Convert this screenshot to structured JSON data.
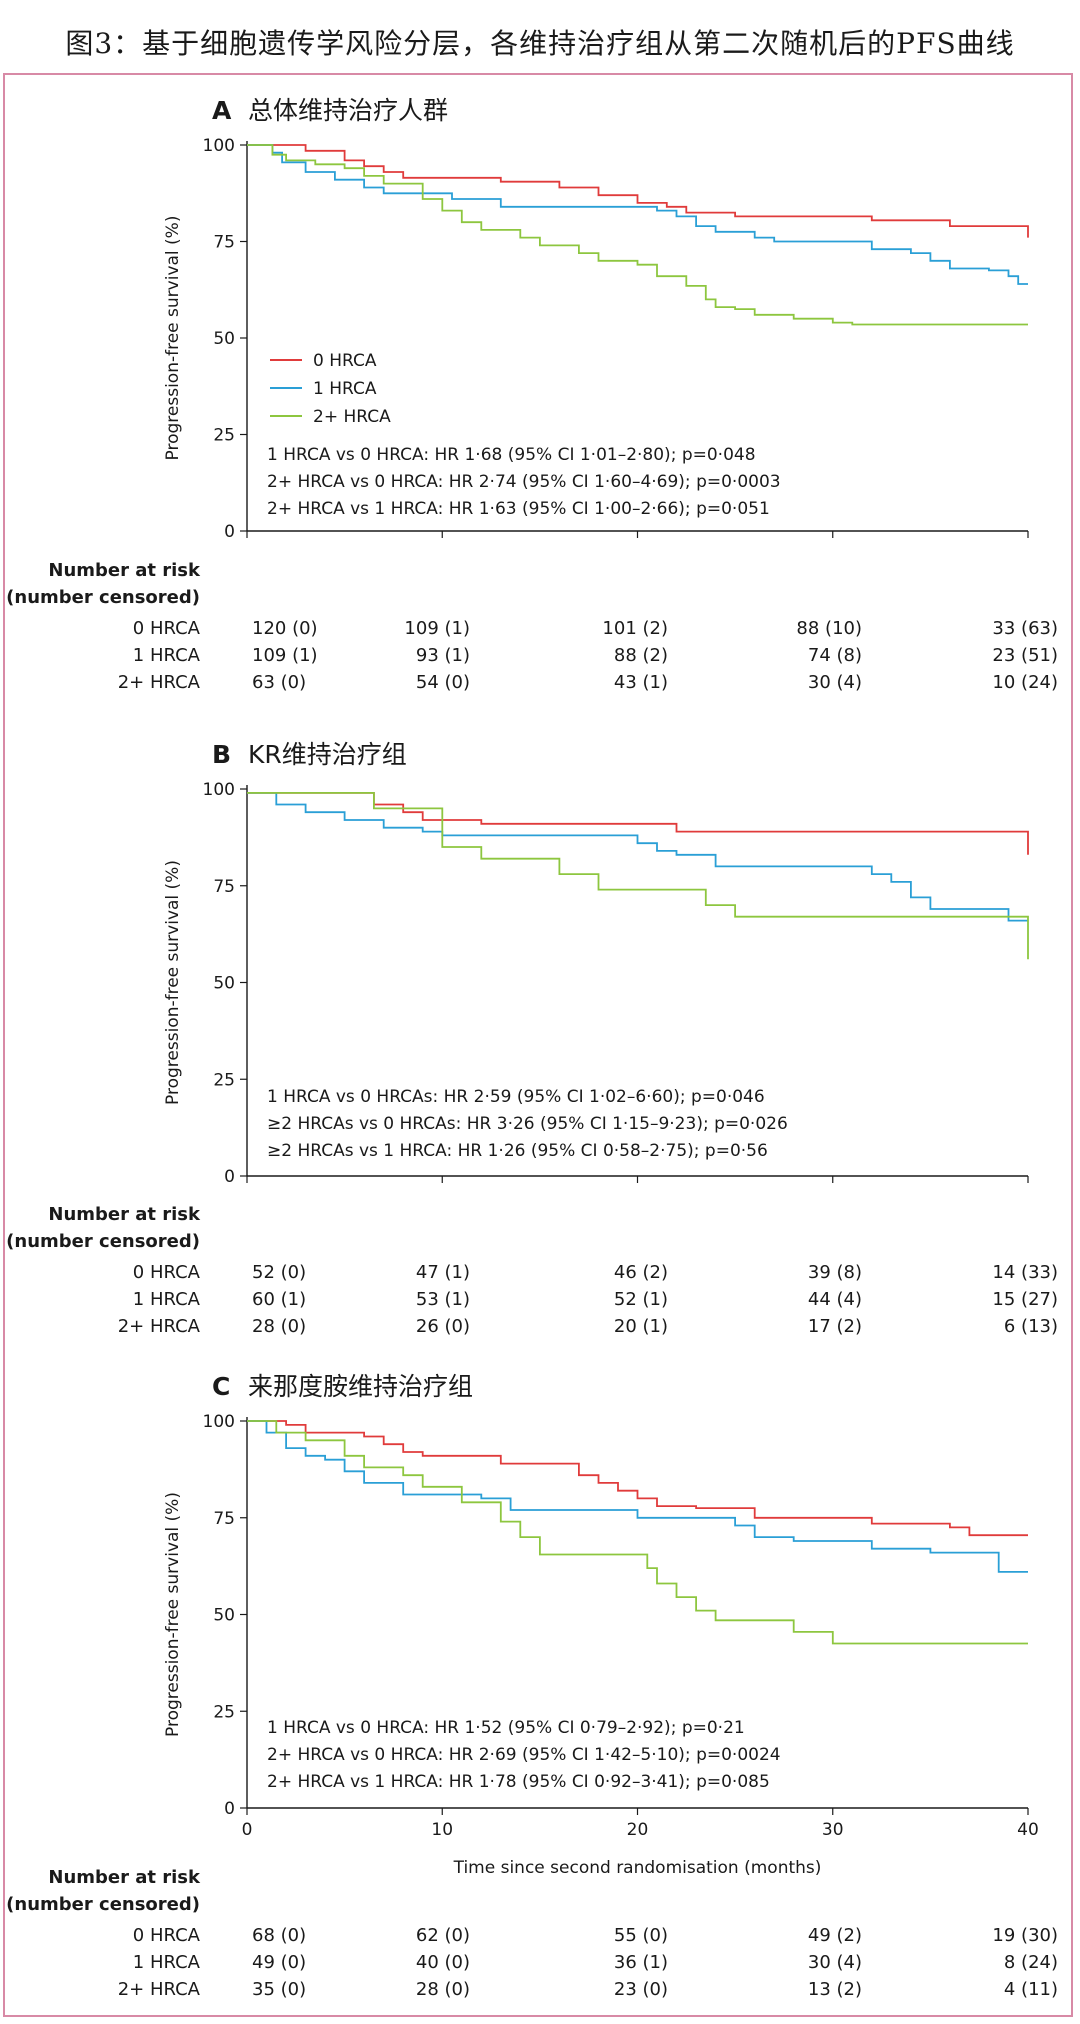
{
  "header": {
    "title": "图3：基于细胞遗传学风险分层，各维持治疗组从第二次随机后的PFS曲线"
  },
  "colors": {
    "hrca0": "#e03b3b",
    "hrca1": "#2a9fd6",
    "hrca2": "#8dc63f",
    "border": "#d88aa6"
  },
  "chart_data": [
    {
      "type": "line",
      "panel_letter": "A",
      "title": "总体维持治疗人群",
      "xlabel": "",
      "ylabel": "Progression-free survival (%)",
      "xlim": [
        0,
        40
      ],
      "ylim": [
        0,
        100
      ],
      "yticks": [
        "0",
        "25",
        "50",
        "75",
        "100"
      ],
      "xticks": [],
      "legend": {
        "position": "left",
        "entries": [
          "0 HRCA",
          "1 HRCA",
          "2+ HRCA"
        ]
      },
      "series": [
        {
          "name": "0 HRCA",
          "color": "#e03b3b",
          "points": [
            [
              0,
              100
            ],
            [
              2,
              100
            ],
            [
              3,
              98.5
            ],
            [
              5,
              96
            ],
            [
              6,
              94.5
            ],
            [
              7,
              93
            ],
            [
              8,
              91.5
            ],
            [
              13,
              90.5
            ],
            [
              16,
              89
            ],
            [
              18,
              87
            ],
            [
              20,
              85
            ],
            [
              21.5,
              84
            ],
            [
              22.5,
              82.5
            ],
            [
              25,
              81.5
            ],
            [
              27,
              81.5
            ],
            [
              32,
              80.5
            ],
            [
              36,
              79
            ],
            [
              40,
              79
            ],
            [
              40,
              76
            ]
          ]
        },
        {
          "name": "1 HRCA",
          "color": "#2a9fd6",
          "points": [
            [
              0,
              100
            ],
            [
              1.3,
              98
            ],
            [
              1.8,
              95.5
            ],
            [
              3,
              93
            ],
            [
              4.5,
              91
            ],
            [
              6,
              89
            ],
            [
              7,
              87.5
            ],
            [
              9,
              87.5
            ],
            [
              10.5,
              86
            ],
            [
              13,
              84
            ],
            [
              16,
              84
            ],
            [
              19,
              84
            ],
            [
              21,
              83
            ],
            [
              22,
              81.5
            ],
            [
              23,
              79
            ],
            [
              24,
              77.5
            ],
            [
              26,
              76
            ],
            [
              27,
              75
            ],
            [
              32,
              73
            ],
            [
              34,
              72
            ],
            [
              35,
              70
            ],
            [
              36,
              68
            ],
            [
              38,
              67.5
            ],
            [
              39,
              66
            ],
            [
              39.5,
              64
            ],
            [
              40,
              64
            ]
          ]
        },
        {
          "name": "2+ HRCA",
          "color": "#8dc63f",
          "points": [
            [
              0,
              100
            ],
            [
              1.3,
              97.5
            ],
            [
              2,
              96
            ],
            [
              3.5,
              95
            ],
            [
              5,
              94
            ],
            [
              6,
              92
            ],
            [
              7,
              90
            ],
            [
              9,
              86
            ],
            [
              10,
              83
            ],
            [
              11,
              80
            ],
            [
              12,
              78
            ],
            [
              14,
              76
            ],
            [
              15,
              74
            ],
            [
              17,
              72
            ],
            [
              18,
              70
            ],
            [
              20,
              69
            ],
            [
              21,
              66
            ],
            [
              22.5,
              63.5
            ],
            [
              23.5,
              60
            ],
            [
              24,
              58
            ],
            [
              25,
              57.5
            ],
            [
              26,
              56
            ],
            [
              28,
              55
            ],
            [
              30,
              54
            ],
            [
              31,
              53.5
            ],
            [
              40,
              53.5
            ]
          ]
        }
      ],
      "stats": [
        "1 HRCA vs 0 HRCA: HR 1·68 (95% CI 1·01–2·80); p=0·048",
        "2+ HRCA vs 0 HRCA: HR 2·74 (95% CI 1·60–4·69); p=0·0003",
        "2+ HRCA vs 1 HRCA: HR 1·63 (95% CI 1·00–2·66); p=0·051"
      ],
      "risk_table": {
        "header": [
          "Number at risk",
          "(number censored)"
        ],
        "rows": [
          {
            "label": "0 HRCA",
            "values": [
              "120 (0)",
              "109 (1)",
              "101 (2)",
              "88 (10)",
              "33 (63)"
            ]
          },
          {
            "label": "1 HRCA",
            "values": [
              "109 (1)",
              "93 (1)",
              "88 (2)",
              "74 (8)",
              "23 (51)"
            ]
          },
          {
            "label": "2+ HRCA",
            "values": [
              "63 (0)",
              "54 (0)",
              "43 (1)",
              "30 (4)",
              "10 (24)"
            ]
          }
        ]
      }
    },
    {
      "type": "line",
      "panel_letter": "B",
      "title": "KR维持治疗组",
      "xlabel": "",
      "ylabel": "Progression-free survival (%)",
      "xlim": [
        0,
        40
      ],
      "ylim": [
        0,
        100
      ],
      "yticks": [
        "0",
        "25",
        "50",
        "75",
        "100"
      ],
      "xticks": [],
      "series": [
        {
          "name": "0 HRCA",
          "color": "#e03b3b",
          "points": [
            [
              0,
              99
            ],
            [
              6,
              99
            ],
            [
              6.5,
              96
            ],
            [
              8,
              94
            ],
            [
              9,
              92
            ],
            [
              12,
              91
            ],
            [
              22,
              91
            ],
            [
              22,
              89
            ],
            [
              39,
              89
            ],
            [
              40,
              89
            ],
            [
              40,
              83
            ]
          ]
        },
        {
          "name": "1 HRCA",
          "color": "#2a9fd6",
          "points": [
            [
              0,
              99
            ],
            [
              1.4,
              99
            ],
            [
              1.5,
              96
            ],
            [
              3,
              94
            ],
            [
              5,
              92
            ],
            [
              7,
              90
            ],
            [
              9,
              89
            ],
            [
              10,
              88
            ],
            [
              19,
              88
            ],
            [
              20,
              86
            ],
            [
              21,
              84
            ],
            [
              22,
              83
            ],
            [
              24,
              80
            ],
            [
              30,
              80
            ],
            [
              32,
              78
            ],
            [
              33,
              76
            ],
            [
              34,
              72
            ],
            [
              35,
              69
            ],
            [
              38,
              69
            ],
            [
              39,
              66
            ],
            [
              40,
              66
            ]
          ]
        },
        {
          "name": "2+ HRCA",
          "color": "#8dc63f",
          "points": [
            [
              0,
              99
            ],
            [
              6,
              99
            ],
            [
              6.5,
              95
            ],
            [
              9,
              95
            ],
            [
              10,
              85
            ],
            [
              12,
              82
            ],
            [
              16,
              78
            ],
            [
              18,
              74
            ],
            [
              23,
              74
            ],
            [
              23.5,
              70
            ],
            [
              25,
              67
            ],
            [
              40,
              67
            ],
            [
              40,
              56
            ]
          ]
        }
      ],
      "stats": [
        "1 HRCA vs 0 HRCAs: HR 2·59 (95% CI 1·02–6·60); p=0·046",
        "≥2 HRCAs vs 0 HRCAs: HR 3·26 (95% CI 1·15–9·23); p=0·026",
        "≥2 HRCAs vs 1 HRCA: HR 1·26 (95% CI 0·58–2·75); p=0·56"
      ],
      "risk_table": {
        "header": [
          "Number at risk",
          "(number censored)"
        ],
        "rows": [
          {
            "label": "0 HRCA",
            "values": [
              "52 (0)",
              "47 (1)",
              "46 (2)",
              "39 (8)",
              "14 (33)"
            ]
          },
          {
            "label": "1 HRCA",
            "values": [
              "60 (1)",
              "53 (1)",
              "52 (1)",
              "44 (4)",
              "15 (27)"
            ]
          },
          {
            "label": "2+ HRCA",
            "values": [
              "28 (0)",
              "26 (0)",
              "20 (1)",
              "17 (2)",
              "6 (13)"
            ]
          }
        ]
      }
    },
    {
      "type": "line",
      "panel_letter": "C",
      "title": "来那度胺维持治疗组",
      "xlabel": "Time since second randomisation (months)",
      "ylabel": "Progression-free survival (%)",
      "xlim": [
        0,
        40
      ],
      "ylim": [
        0,
        100
      ],
      "yticks": [
        "0",
        "25",
        "50",
        "75",
        "100"
      ],
      "xticks": [
        "0",
        "10",
        "20",
        "30",
        "40"
      ],
      "series": [
        {
          "name": "0 HRCA",
          "color": "#e03b3b",
          "points": [
            [
              0,
              100
            ],
            [
              2,
              99
            ],
            [
              3,
              97
            ],
            [
              6,
              96
            ],
            [
              7,
              94
            ],
            [
              8,
              92
            ],
            [
              9,
              91
            ],
            [
              13,
              89
            ],
            [
              16,
              89
            ],
            [
              17,
              86
            ],
            [
              18,
              84
            ],
            [
              19,
              82
            ],
            [
              20,
              80
            ],
            [
              21,
              78
            ],
            [
              23,
              77.5
            ],
            [
              26,
              75
            ],
            [
              30,
              75
            ],
            [
              32,
              73.5
            ],
            [
              36,
              72.5
            ],
            [
              37,
              70.5
            ],
            [
              40,
              70.5
            ]
          ]
        },
        {
          "name": "1 HRCA",
          "color": "#2a9fd6",
          "points": [
            [
              0,
              100
            ],
            [
              1,
              97
            ],
            [
              2,
              93
            ],
            [
              3,
              91
            ],
            [
              4,
              90
            ],
            [
              5,
              87
            ],
            [
              6,
              84
            ],
            [
              8,
              81
            ],
            [
              10,
              81
            ],
            [
              12,
              80
            ],
            [
              13.5,
              77
            ],
            [
              18,
              77
            ],
            [
              20,
              75
            ],
            [
              25,
              73
            ],
            [
              26,
              70
            ],
            [
              28,
              69
            ],
            [
              32,
              67
            ],
            [
              35,
              66
            ],
            [
              38,
              66
            ],
            [
              38.5,
              61
            ],
            [
              40,
              61
            ]
          ]
        },
        {
          "name": "2+ HRCA",
          "color": "#8dc63f",
          "points": [
            [
              0,
              100
            ],
            [
              1.5,
              97
            ],
            [
              3,
              95
            ],
            [
              5,
              91
            ],
            [
              6,
              88
            ],
            [
              8,
              86
            ],
            [
              9,
              83
            ],
            [
              11,
              79
            ],
            [
              13,
              74
            ],
            [
              14,
              70
            ],
            [
              15,
              65.5
            ],
            [
              20,
              65.5
            ],
            [
              20.5,
              62
            ],
            [
              21,
              58
            ],
            [
              22,
              54.5
            ],
            [
              23,
              51
            ],
            [
              24,
              48.5
            ],
            [
              27,
              48.5
            ],
            [
              28,
              45.5
            ],
            [
              30,
              42.5
            ],
            [
              40,
              42.5
            ]
          ]
        }
      ],
      "stats": [
        "1 HRCA vs 0 HRCA: HR 1·52 (95% CI 0·79–2·92); p=0·21",
        "2+ HRCA vs 0 HRCA: HR 2·69 (95% CI 1·42–5·10); p=0·0024",
        "2+ HRCA vs 1 HRCA: HR 1·78 (95% CI 0·92–3·41); p=0·085"
      ],
      "risk_table": {
        "header": [
          "Number at risk",
          "(number censored)"
        ],
        "rows": [
          {
            "label": "0 HRCA",
            "values": [
              "68 (0)",
              "62 (0)",
              "55 (0)",
              "49 (2)",
              "19 (30)"
            ]
          },
          {
            "label": "1 HRCA",
            "values": [
              "49 (0)",
              "40 (0)",
              "36 (1)",
              "30 (4)",
              "8 (24)"
            ]
          },
          {
            "label": "2+ HRCA",
            "values": [
              "35 (0)",
              "28 (0)",
              "23 (0)",
              "13 (2)",
              "4 (11)"
            ]
          }
        ]
      }
    }
  ]
}
